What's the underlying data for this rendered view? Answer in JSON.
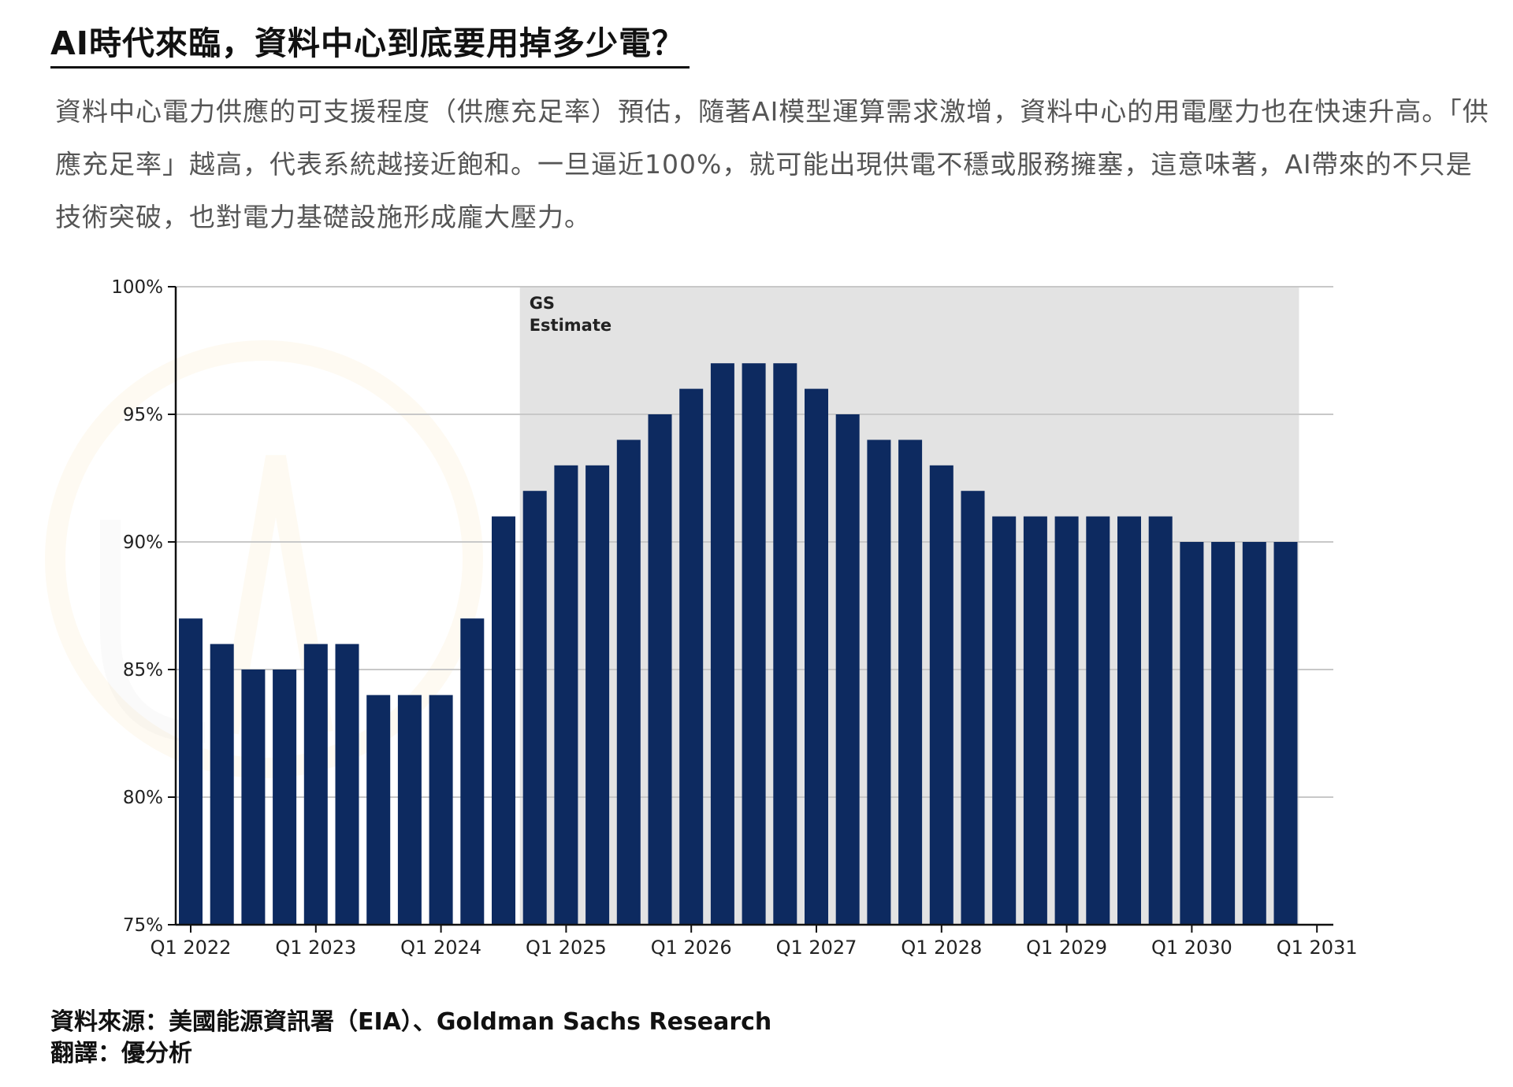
{
  "page": {
    "title": "AI時代來臨，資料中心到底要用掉多少電？",
    "description": "資料中心電力供應的可支援程度（供應充足率）預估，隨著AI模型運算需求激增，資料中心的用電壓力也在快速升高。「供應充足率」越高，代表系統越接近飽和。一旦逼近100%，就可能出現供電不穩或服務擁塞，這意味著，AI帶來的不只是技術突破，也對電力基礎設施形成龐大壓力。",
    "source_line": "資料來源：美國能源資訊署（EIA）、Goldman Sachs Research",
    "translator_line": "翻譯：優分析"
  },
  "colors": {
    "bar": "#0d2a60",
    "estimate_shade": "#e3e3e3",
    "grid": "#c8c8c8",
    "axis": "#111111",
    "watermark": "#f4b942"
  },
  "chart_data": {
    "type": "bar",
    "ylim": [
      75,
      100
    ],
    "yticks": [
      "100%",
      "95%",
      "90%",
      "85%",
      "80%",
      "75%"
    ],
    "ytick_values": [
      100,
      95,
      90,
      85,
      80,
      75
    ],
    "grid": true,
    "xtick_labels": [
      "Q1 2022",
      "Q1 2023",
      "Q1 2024",
      "Q1 2025",
      "Q1 2026",
      "Q1 2027",
      "Q1 2028",
      "Q1 2029",
      "Q1 2030",
      "Q1 2031"
    ],
    "estimate_label_line1": "GS",
    "estimate_label_line2": "Estimate",
    "estimate_start_quarter_index": 11,
    "series": [
      {
        "values": [
          87,
          86,
          85,
          85,
          86,
          86,
          84,
          84,
          84,
          87,
          91,
          92,
          93,
          93,
          94,
          95,
          96,
          97,
          97,
          97,
          96,
          95,
          94,
          94,
          93,
          92,
          91,
          91,
          91,
          91,
          91,
          91,
          90,
          90,
          90,
          90
        ]
      }
    ]
  }
}
